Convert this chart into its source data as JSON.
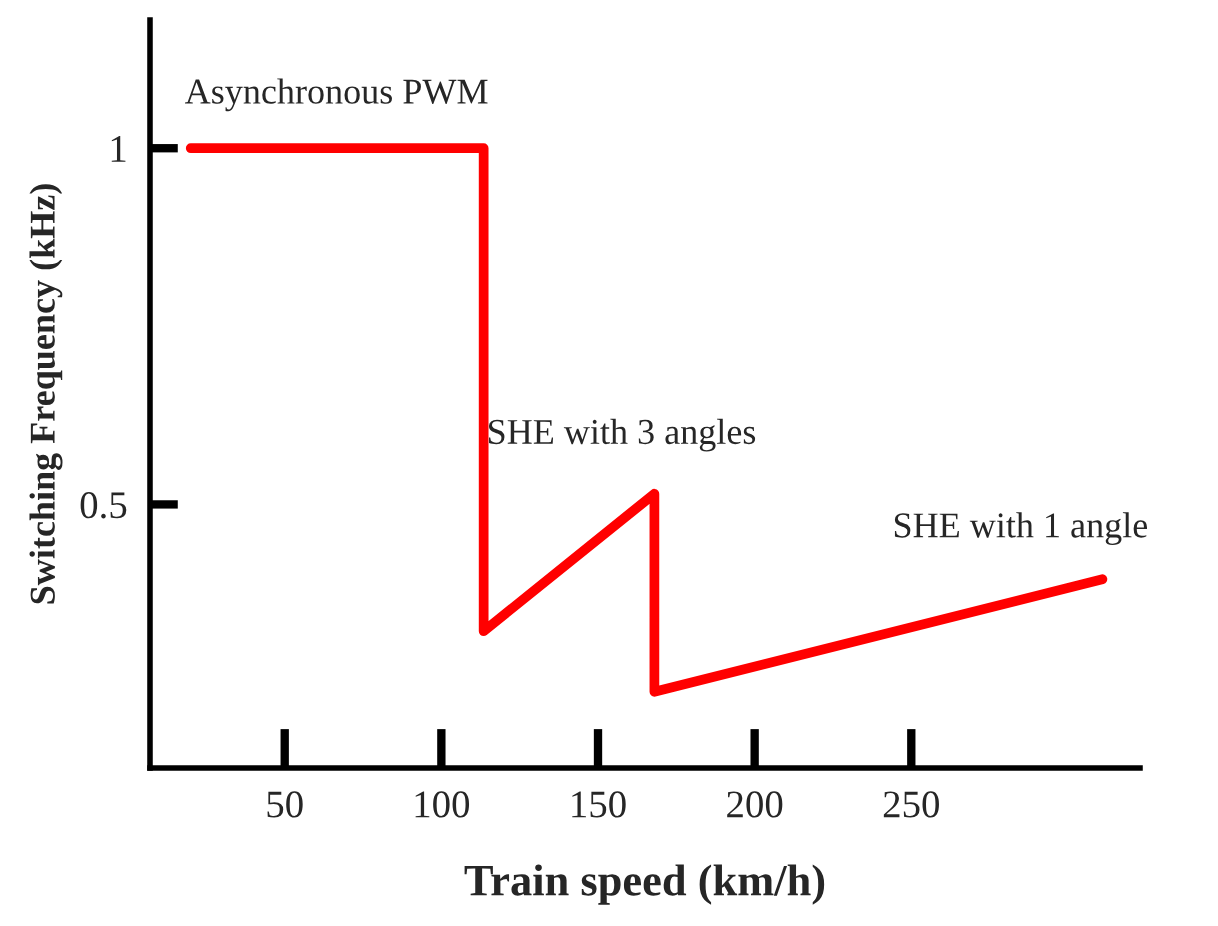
{
  "chart_data": {
    "type": "line",
    "xlabel": "Train speed (km/h)",
    "ylabel": "Switching Frequency (kHz)",
    "series": [
      {
        "color": "#ff0000",
        "x": [
          20,
          113.5,
          113.5,
          168,
          168,
          311
        ],
        "values": [
          1,
          1,
          0.322,
          0.515,
          0.237,
          0.395
        ]
      }
    ],
    "xlim": [
      7,
      323
    ],
    "ylim": [
      0.13,
      1.18
    ],
    "xticks": [
      50,
      100,
      150,
      200,
      250
    ],
    "yticks": [
      0.5,
      1
    ],
    "grid": false,
    "legend": false,
    "marker": "none",
    "line_style": "solid",
    "annotations": [
      "Asynchronous PWM",
      "SHE with 3 angles",
      "SHE with 1 angle"
    ]
  }
}
